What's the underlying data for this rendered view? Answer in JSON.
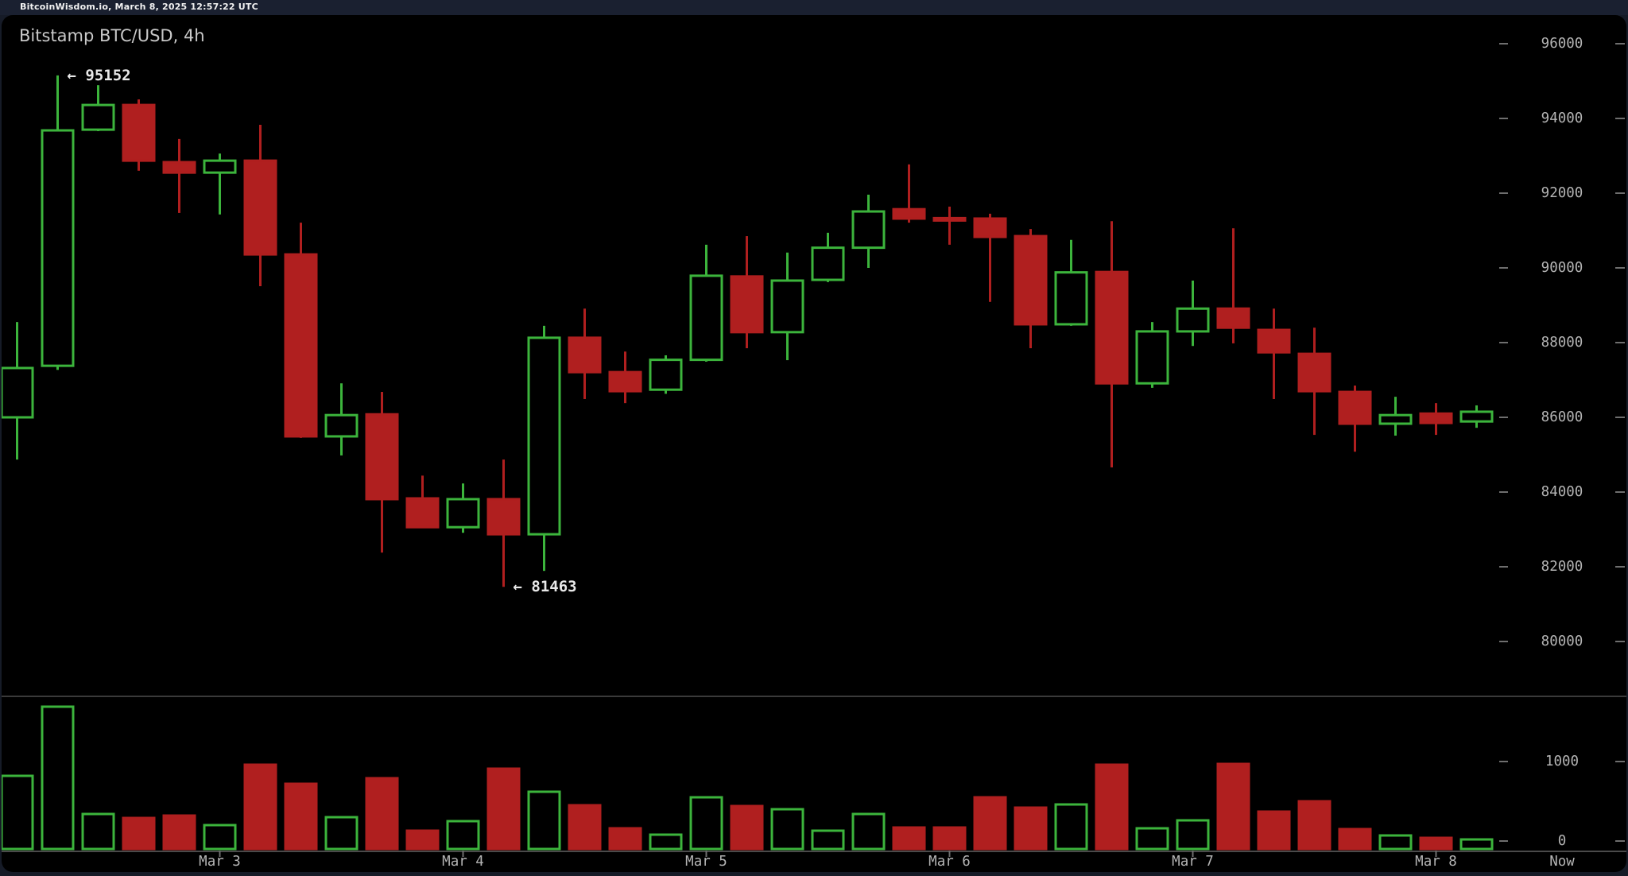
{
  "topbar": {
    "text": "BitcoinWisdom.io, March 8, 2025 12:57:22 UTC"
  },
  "chart": {
    "title": "Bitstamp BTC/USD, 4h"
  },
  "colors": {
    "up": "#3cb43c",
    "down": "#b01f1f",
    "chart_background": "#000000",
    "page_background": "#161b27",
    "topbar_background": "#1a2030",
    "axis_text": "#b4b4b4",
    "annotation_text": "#e8e8e8",
    "axis_line": "#4a4a4a",
    "separator_line": "#3a3a3a",
    "tick_mark": "#6e6e6e"
  },
  "chart_data": {
    "type": "candlestick_with_volume",
    "title": "Bitstamp BTC/USD, 4h",
    "interval": "4h",
    "legend_position": "none",
    "grid": false,
    "price_axis": {
      "ticks": [
        96000,
        94000,
        92000,
        90000,
        88000,
        86000,
        84000,
        82000,
        80000
      ],
      "ylim": [
        80000,
        96000
      ]
    },
    "volume_axis": {
      "ticks": [
        1000,
        0
      ]
    },
    "time_axis": {
      "labels": [
        "Mar 3",
        "Mar 4",
        "Mar 5",
        "Mar 6",
        "Mar 7",
        "Mar 8"
      ],
      "tick_candle_indices": [
        5,
        11,
        17,
        23,
        29,
        35
      ],
      "now_label": "Now"
    },
    "annotations": [
      {
        "text": "← 95152",
        "value": 95152,
        "candle_index": 1,
        "anchor": "high"
      },
      {
        "text": "← 81463",
        "value": 81463,
        "candle_index": 12,
        "anchor": "low"
      }
    ],
    "candles": [
      {
        "open": 86000,
        "high": 88550,
        "low": 84870,
        "close": 87320,
        "volume": 820
      },
      {
        "open": 87380,
        "high": 95152,
        "low": 87270,
        "close": 93680,
        "volume": 1690
      },
      {
        "open": 93700,
        "high": 94890,
        "low": 93660,
        "close": 94360,
        "volume": 340
      },
      {
        "open": 94360,
        "high": 94510,
        "low": 92600,
        "close": 92870,
        "volume": 290
      },
      {
        "open": 92830,
        "high": 93450,
        "low": 91470,
        "close": 92550,
        "volume": 320
      },
      {
        "open": 92550,
        "high": 93060,
        "low": 91430,
        "close": 92870,
        "volume": 200
      },
      {
        "open": 92870,
        "high": 93830,
        "low": 89510,
        "close": 90360,
        "volume": 960
      },
      {
        "open": 90360,
        "high": 91210,
        "low": 85450,
        "close": 85490,
        "volume": 720
      },
      {
        "open": 85490,
        "high": 86910,
        "low": 84980,
        "close": 86060,
        "volume": 300
      },
      {
        "open": 86080,
        "high": 86680,
        "low": 82380,
        "close": 83810,
        "volume": 790
      },
      {
        "open": 83830,
        "high": 84440,
        "low": 83060,
        "close": 83060,
        "volume": 130
      },
      {
        "open": 83060,
        "high": 84230,
        "low": 82910,
        "close": 83810,
        "volume": 250
      },
      {
        "open": 83810,
        "high": 84870,
        "low": 81463,
        "close": 82870,
        "volume": 910
      },
      {
        "open": 82870,
        "high": 88450,
        "low": 81890,
        "close": 88130,
        "volume": 620
      },
      {
        "open": 88130,
        "high": 88910,
        "low": 86490,
        "close": 87210,
        "volume": 450
      },
      {
        "open": 87210,
        "high": 87760,
        "low": 86380,
        "close": 86700,
        "volume": 160
      },
      {
        "open": 86740,
        "high": 87660,
        "low": 86630,
        "close": 87540,
        "volume": 80
      },
      {
        "open": 87540,
        "high": 90620,
        "low": 87490,
        "close": 89790,
        "volume": 550
      },
      {
        "open": 89770,
        "high": 90850,
        "low": 87850,
        "close": 88280,
        "volume": 440
      },
      {
        "open": 88280,
        "high": 90410,
        "low": 87530,
        "close": 89660,
        "volume": 400
      },
      {
        "open": 89680,
        "high": 90940,
        "low": 89620,
        "close": 90540,
        "volume": 130
      },
      {
        "open": 90540,
        "high": 91960,
        "low": 90000,
        "close": 91510,
        "volume": 340
      },
      {
        "open": 91570,
        "high": 92770,
        "low": 91210,
        "close": 91320,
        "volume": 170
      },
      {
        "open": 91320,
        "high": 91640,
        "low": 90620,
        "close": 91280,
        "volume": 170
      },
      {
        "open": 91320,
        "high": 91450,
        "low": 89090,
        "close": 90830,
        "volume": 550
      },
      {
        "open": 90850,
        "high": 91040,
        "low": 87850,
        "close": 88490,
        "volume": 420
      },
      {
        "open": 88490,
        "high": 90750,
        "low": 88450,
        "close": 89880,
        "volume": 460
      },
      {
        "open": 89890,
        "high": 91250,
        "low": 84660,
        "close": 86910,
        "volume": 960
      },
      {
        "open": 86910,
        "high": 88550,
        "low": 86790,
        "close": 88300,
        "volume": 160
      },
      {
        "open": 88300,
        "high": 89660,
        "low": 87910,
        "close": 88910,
        "volume": 260
      },
      {
        "open": 88910,
        "high": 91060,
        "low": 87980,
        "close": 88400,
        "volume": 970
      },
      {
        "open": 88340,
        "high": 88910,
        "low": 86490,
        "close": 87740,
        "volume": 370
      },
      {
        "open": 87700,
        "high": 88400,
        "low": 85530,
        "close": 86700,
        "volume": 500
      },
      {
        "open": 86680,
        "high": 86850,
        "low": 85080,
        "close": 85830,
        "volume": 150
      },
      {
        "open": 85830,
        "high": 86550,
        "low": 85510,
        "close": 86060,
        "volume": 70
      },
      {
        "open": 86100,
        "high": 86380,
        "low": 85530,
        "close": 85850,
        "volume": 40
      },
      {
        "open": 85890,
        "high": 86320,
        "low": 85720,
        "close": 86150,
        "volume": 20
      }
    ]
  }
}
